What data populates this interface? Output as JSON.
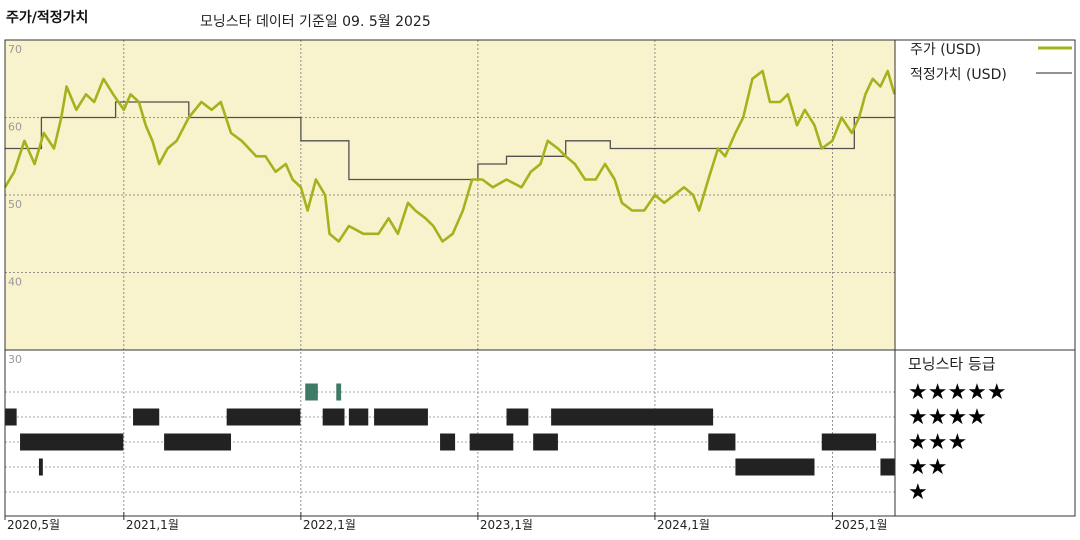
{
  "header": {
    "title": "주가/적정가치",
    "subtitle": "모닝스타 데이터 기준일 09. 5월 2025"
  },
  "legend": {
    "price": "주가 (USD)",
    "fair_value": "적정가치 (USD)"
  },
  "rating_panel": {
    "title": "모닝스타 등급",
    "stars": [
      "★★★★★",
      "★★★★",
      "★★★",
      "★★",
      "★"
    ]
  },
  "colors": {
    "price_line": "#a3b31e",
    "fair_value_line": "#505050",
    "upper_panel_bg": "#f8f3cc",
    "bar_dark": "#222222",
    "bar_green": "#3e7a65"
  },
  "chart_data": [
    {
      "type": "line",
      "title": "주가/적정가치",
      "ylim": [
        35,
        70
      ],
      "y_ticks": [
        40,
        50,
        60,
        70
      ],
      "x_ticks": [
        "2020,5월",
        "2021,1월",
        "2022,1월",
        "2023,1월",
        "2024,1월",
        "2025,1월"
      ],
      "grid": true,
      "legend_position": "right",
      "series": [
        {
          "name": "주가 (USD)",
          "points": [
            [
              "2020-05-01",
              51
            ],
            [
              "2020-05-20",
              53
            ],
            [
              "2020-06-10",
              57
            ],
            [
              "2020-07-01",
              54
            ],
            [
              "2020-07-20",
              58
            ],
            [
              "2020-08-10",
              56
            ],
            [
              "2020-08-25",
              60
            ],
            [
              "2020-09-05",
              64
            ],
            [
              "2020-09-25",
              61
            ],
            [
              "2020-10-15",
              63
            ],
            [
              "2020-11-01",
              62
            ],
            [
              "2020-11-20",
              65
            ],
            [
              "2020-12-10",
              63
            ],
            [
              "2021-01-01",
              61
            ],
            [
              "2021-01-15",
              63
            ],
            [
              "2021-02-01",
              62
            ],
            [
              "2021-02-15",
              59
            ],
            [
              "2021-03-01",
              57
            ],
            [
              "2021-03-15",
              54
            ],
            [
              "2021-04-01",
              56
            ],
            [
              "2021-04-20",
              57
            ],
            [
              "2021-05-15",
              60
            ],
            [
              "2021-06-10",
              62
            ],
            [
              "2021-07-01",
              61
            ],
            [
              "2021-07-20",
              62
            ],
            [
              "2021-08-10",
              58
            ],
            [
              "2021-09-01",
              57
            ],
            [
              "2021-10-01",
              55
            ],
            [
              "2021-10-20",
              55
            ],
            [
              "2021-11-10",
              53
            ],
            [
              "2021-12-01",
              54
            ],
            [
              "2021-12-15",
              52
            ],
            [
              "2022-01-01",
              51
            ],
            [
              "2022-01-15",
              48
            ],
            [
              "2022-02-01",
              52
            ],
            [
              "2022-02-20",
              50
            ],
            [
              "2022-03-01",
              45
            ],
            [
              "2022-03-20",
              44
            ],
            [
              "2022-04-10",
              46
            ],
            [
              "2022-05-10",
              45
            ],
            [
              "2022-06-10",
              45
            ],
            [
              "2022-07-01",
              47
            ],
            [
              "2022-07-20",
              45
            ],
            [
              "2022-08-10",
              49
            ],
            [
              "2022-08-25",
              48
            ],
            [
              "2022-09-15",
              47
            ],
            [
              "2022-10-01",
              46
            ],
            [
              "2022-10-20",
              44
            ],
            [
              "2022-11-10",
              45
            ],
            [
              "2022-12-01",
              48
            ],
            [
              "2022-12-20",
              52
            ],
            [
              "2023-01-10",
              52
            ],
            [
              "2023-02-01",
              51
            ],
            [
              "2023-03-01",
              52
            ],
            [
              "2023-04-01",
              51
            ],
            [
              "2023-04-20",
              53
            ],
            [
              "2023-05-10",
              54
            ],
            [
              "2023-05-25",
              57
            ],
            [
              "2023-06-15",
              56
            ],
            [
              "2023-07-01",
              55
            ],
            [
              "2023-07-20",
              54
            ],
            [
              "2023-08-10",
              52
            ],
            [
              "2023-09-01",
              52
            ],
            [
              "2023-09-20",
              54
            ],
            [
              "2023-10-10",
              52
            ],
            [
              "2023-10-25",
              49
            ],
            [
              "2023-11-15",
              48
            ],
            [
              "2023-12-10",
              48
            ],
            [
              "2024-01-01",
              50
            ],
            [
              "2024-01-20",
              49
            ],
            [
              "2024-02-10",
              50
            ],
            [
              "2024-03-01",
              51
            ],
            [
              "2024-03-20",
              50
            ],
            [
              "2024-04-01",
              48
            ],
            [
              "2024-04-20",
              52
            ],
            [
              "2024-05-10",
              56
            ],
            [
              "2024-05-25",
              55
            ],
            [
              "2024-06-15",
              58
            ],
            [
              "2024-07-01",
              60
            ],
            [
              "2024-07-20",
              65
            ],
            [
              "2024-08-10",
              66
            ],
            [
              "2024-08-25",
              62
            ],
            [
              "2024-09-15",
              62
            ],
            [
              "2024-10-01",
              63
            ],
            [
              "2024-10-20",
              59
            ],
            [
              "2024-11-05",
              61
            ],
            [
              "2024-11-25",
              59
            ],
            [
              "2024-12-10",
              56
            ],
            [
              "2025-01-01",
              57
            ],
            [
              "2025-01-20",
              60
            ],
            [
              "2025-02-10",
              58
            ],
            [
              "2025-02-25",
              60
            ],
            [
              "2025-03-10",
              63
            ],
            [
              "2025-03-25",
              65
            ],
            [
              "2025-04-10",
              64
            ],
            [
              "2025-04-25",
              66
            ],
            [
              "2025-05-09",
              63
            ]
          ]
        },
        {
          "name": "적정가치 (USD)",
          "points": [
            [
              "2020-05-01",
              56
            ],
            [
              "2020-07-15",
              56
            ],
            [
              "2020-07-15",
              60
            ],
            [
              "2020-12-15",
              60
            ],
            [
              "2020-12-15",
              62
            ],
            [
              "2021-05-15",
              62
            ],
            [
              "2021-05-15",
              60
            ],
            [
              "2022-01-01",
              60
            ],
            [
              "2022-01-01",
              57
            ],
            [
              "2022-04-10",
              57
            ],
            [
              "2022-04-10",
              52
            ],
            [
              "2023-01-01",
              52
            ],
            [
              "2023-01-01",
              54
            ],
            [
              "2023-03-01",
              54
            ],
            [
              "2023-03-01",
              55
            ],
            [
              "2023-07-01",
              55
            ],
            [
              "2023-07-01",
              57
            ],
            [
              "2023-10-01",
              57
            ],
            [
              "2023-10-01",
              56
            ],
            [
              "2025-02-15",
              56
            ],
            [
              "2025-02-15",
              60
            ],
            [
              "2025-05-09",
              60
            ]
          ]
        }
      ]
    },
    {
      "type": "bar",
      "title": "모닝스타 등급",
      "y_ticks": [
        "★★★★★",
        "★★★★",
        "★★★",
        "★★",
        "★"
      ],
      "series": [
        {
          "name": "★★★★★",
          "color": "#3e7a65",
          "periods": [
            [
              "2022-01-10",
              "2022-02-05"
            ],
            [
              "2022-03-15",
              "2022-03-25"
            ]
          ]
        },
        {
          "name": "★★★★",
          "color": "#222222",
          "periods": [
            [
              "2020-05-01",
              "2020-05-25"
            ],
            [
              "2021-01-20",
              "2021-03-15"
            ],
            [
              "2021-08-01",
              "2021-12-31"
            ],
            [
              "2022-02-15",
              "2022-04-01"
            ],
            [
              "2022-04-10",
              "2022-05-20"
            ],
            [
              "2022-06-01",
              "2022-09-20"
            ],
            [
              "2023-03-01",
              "2023-04-15"
            ],
            [
              "2023-06-01",
              "2024-04-30"
            ]
          ]
        },
        {
          "name": "★★★",
          "color": "#222222",
          "periods": [
            [
              "2020-06-01",
              "2020-12-31"
            ],
            [
              "2021-03-25",
              "2021-08-10"
            ],
            [
              "2022-10-15",
              "2022-11-15"
            ],
            [
              "2022-12-15",
              "2023-03-15"
            ],
            [
              "2023-04-25",
              "2023-06-15"
            ],
            [
              "2024-04-20",
              "2024-06-15"
            ],
            [
              "2024-12-10",
              "2025-04-01"
            ]
          ]
        },
        {
          "name": "★★",
          "color": "#222222",
          "periods": [
            [
              "2020-07-10",
              "2020-07-18"
            ],
            [
              "2024-06-15",
              "2024-11-25"
            ],
            [
              "2025-04-10",
              "2025-05-09"
            ]
          ]
        },
        {
          "name": "★",
          "color": "#222222",
          "periods": []
        }
      ]
    }
  ]
}
